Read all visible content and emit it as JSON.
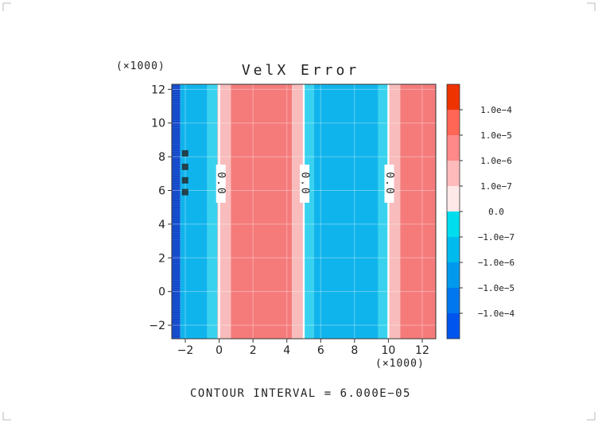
{
  "chart_data": {
    "type": "contour",
    "title": "VelX Error",
    "x_multiplier_label": "(×1000)",
    "y_multiplier_label": "(×1000)",
    "xlim": [
      -2.8,
      12.8
    ],
    "ylim": [
      -2.8,
      12.3
    ],
    "x_ticks": [
      {
        "value": -2,
        "label": "−2"
      },
      {
        "value": 0,
        "label": "0"
      },
      {
        "value": 2,
        "label": "2"
      },
      {
        "value": 4,
        "label": "4"
      },
      {
        "value": 6,
        "label": "6"
      },
      {
        "value": 8,
        "label": "8"
      },
      {
        "value": 10,
        "label": "10"
      },
      {
        "value": 12,
        "label": "12"
      }
    ],
    "y_ticks": [
      {
        "value": -2,
        "label": "−2"
      },
      {
        "value": 0,
        "label": "0"
      },
      {
        "value": 2,
        "label": "2"
      },
      {
        "value": 4,
        "label": "4"
      },
      {
        "value": 6,
        "label": "6"
      },
      {
        "value": 8,
        "label": "8"
      },
      {
        "value": 10,
        "label": "10"
      },
      {
        "value": 12,
        "label": "12"
      }
    ],
    "colorbar": {
      "colors": [
        "#0055ee",
        "#0077ee",
        "#0099ee",
        "#00bbee",
        "#00ddee",
        "#ffe8e8",
        "#ffbbbb",
        "#ff8888",
        "#ff6655",
        "#ee3300"
      ],
      "labels": [
        "−1.0e−4",
        "−1.0e−5",
        "−1.0e−6",
        "−1.0e−7",
        "0.0",
        "1.0e−7",
        "1.0e−6",
        "1.0e−5",
        "1.0e−4"
      ]
    },
    "bands": [
      {
        "x0": -2.8,
        "x1": -2.3,
        "color": "#1a55dd"
      },
      {
        "x0": -2.3,
        "x1": -0.7,
        "color": "#10b4ec"
      },
      {
        "x0": -0.7,
        "x1": -0.1,
        "color": "#38d2ef"
      },
      {
        "x0": -0.1,
        "x1": 0.7,
        "color": "#f8bcbc"
      },
      {
        "x0": 0.7,
        "x1": 4.3,
        "color": "#f57b7b"
      },
      {
        "x0": 4.3,
        "x1": 4.95,
        "color": "#f8bcbc"
      },
      {
        "x0": 5.05,
        "x1": 5.6,
        "color": "#38d2ef"
      },
      {
        "x0": 5.6,
        "x1": 9.4,
        "color": "#10b4ec"
      },
      {
        "x0": 9.4,
        "x1": 9.95,
        "color": "#38d2ef"
      },
      {
        "x0": 10.05,
        "x1": 10.7,
        "color": "#f8bcbc"
      },
      {
        "x0": 10.7,
        "x1": 12.8,
        "color": "#f57b7b"
      }
    ],
    "zero_contours": [
      0.0,
      5.0,
      10.0
    ],
    "contour_labels": [
      {
        "x": 0.1,
        "y": 6.4,
        "text": "0.0"
      },
      {
        "x": 5.05,
        "y": 6.4,
        "text": "0.0"
      },
      {
        "x": 10.05,
        "y": 6.4,
        "text": "0.0"
      }
    ],
    "footer": "CONTOUR INTERVAL = 6.000E−05"
  }
}
